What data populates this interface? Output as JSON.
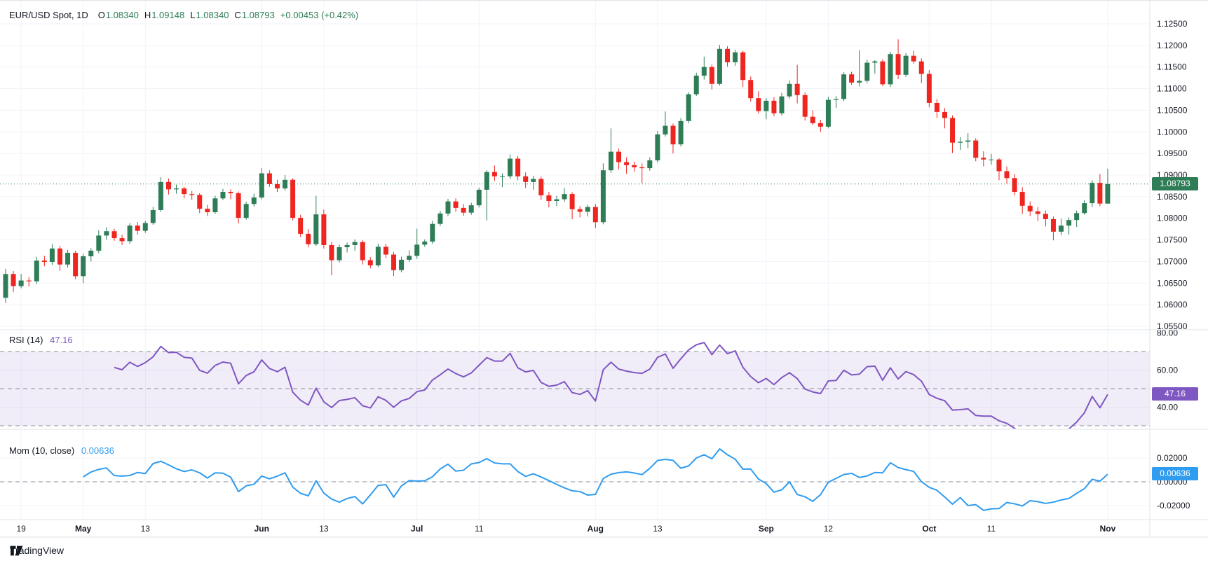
{
  "ui": {
    "symbol_title": "EUR/USD Spot, 1D",
    "ohlc": {
      "o_label": "O",
      "o_value": "1.08340",
      "h_label": "H",
      "h_value": "1.09148",
      "l_label": "L",
      "l_value": "1.08340",
      "c_label": "C",
      "c_value": "1.08793",
      "change": "+0.00453 (+0.42%)"
    },
    "rsi_legend": {
      "name": "RSI",
      "params": "(14)",
      "value": "47.16"
    },
    "mom_legend": {
      "name": "Mom",
      "params": "(10, close)",
      "value": "0.00636"
    },
    "price_badge": "1.08793",
    "rsi_badge": "47.16",
    "mom_badge": "0.00636",
    "logo_text": "TradingView"
  },
  "colors": {
    "up": "#2e7d57",
    "down": "#ef2520",
    "rsi_line": "#7e57c2",
    "rsi_band": "rgba(126,87,194,0.11)",
    "mom_line": "#2f9cf0",
    "guide_dash": "#8b8e98",
    "grid": "#f0f3fa",
    "divider": "#e0e3eb",
    "text": "#131722",
    "price_line": "#2e7d57"
  },
  "chart_data": {
    "type": "candlestick",
    "symbol": "EUR/USD Spot",
    "interval": "1D",
    "last_bar": {
      "open": 1.0834,
      "high": 1.09148,
      "low": 1.0834,
      "close": 1.08793,
      "change": 0.00453,
      "change_pct": 0.42
    },
    "price_axis_labels": [
      {
        "t": "1.12500",
        "v": 1.125
      },
      {
        "t": "1.12000",
        "v": 1.12
      },
      {
        "t": "1.11500",
        "v": 1.115
      },
      {
        "t": "1.11000",
        "v": 1.11
      },
      {
        "t": "1.10500",
        "v": 1.105
      },
      {
        "t": "1.10000",
        "v": 1.1
      },
      {
        "t": "1.09500",
        "v": 1.095
      },
      {
        "t": "1.09000",
        "v": 1.09
      },
      {
        "t": "1.08500",
        "v": 1.085
      },
      {
        "t": "1.08000",
        "v": 1.08
      },
      {
        "t": "1.07500",
        "v": 1.075
      },
      {
        "t": "1.07000",
        "v": 1.07
      },
      {
        "t": "1.06500",
        "v": 1.065
      },
      {
        "t": "1.06000",
        "v": 1.06
      },
      {
        "t": "1.05500",
        "v": 1.055
      }
    ],
    "time_ticks": [
      {
        "label": "19",
        "i": 2,
        "bold": false
      },
      {
        "label": "May",
        "i": 10,
        "bold": true
      },
      {
        "label": "13",
        "i": 18,
        "bold": false
      },
      {
        "label": "Jun",
        "i": 33,
        "bold": true
      },
      {
        "label": "13",
        "i": 41,
        "bold": false
      },
      {
        "label": "Jul",
        "i": 53,
        "bold": true
      },
      {
        "label": "11",
        "i": 61,
        "bold": false
      },
      {
        "label": "Aug",
        "i": 76,
        "bold": true
      },
      {
        "label": "13",
        "i": 84,
        "bold": false
      },
      {
        "label": "Sep",
        "i": 98,
        "bold": true
      },
      {
        "label": "12",
        "i": 106,
        "bold": false
      },
      {
        "label": "Oct",
        "i": 119,
        "bold": true
      },
      {
        "label": "11",
        "i": 127,
        "bold": false
      },
      {
        "label": "Nov",
        "i": 142,
        "bold": true
      }
    ],
    "indicators": [
      {
        "type": "rsi",
        "period": 14,
        "last": 47.16,
        "guides": [
          70,
          50,
          30
        ],
        "band": [
          30,
          70
        ],
        "axis_labels": [
          {
            "t": "80.00",
            "v": 80
          },
          {
            "t": "60.00",
            "v": 60
          },
          {
            "t": "40.00",
            "v": 40
          }
        ]
      },
      {
        "type": "momentum",
        "period": 10,
        "source": "close",
        "last": 0.00636,
        "guides": [
          0
        ],
        "axis_labels": [
          {
            "t": "0.02000",
            "v": 0.02
          },
          {
            "t": "0.00000",
            "v": 0
          },
          {
            "t": "-0.02000",
            "v": -0.02
          }
        ]
      }
    ],
    "candles": [
      [
        1.0616,
        1.0683,
        1.0604,
        1.0671
      ],
      [
        1.0671,
        1.0678,
        1.0629,
        1.0643
      ],
      [
        1.0643,
        1.0671,
        1.0638,
        1.0656
      ],
      [
        1.0656,
        1.0664,
        1.0642,
        1.0654
      ],
      [
        1.0654,
        1.0711,
        1.0648,
        1.0702
      ],
      [
        1.0702,
        1.0713,
        1.0689,
        1.0699
      ],
      [
        1.0699,
        1.074,
        1.0692,
        1.073
      ],
      [
        1.073,
        1.0736,
        1.0678,
        1.0693
      ],
      [
        1.0693,
        1.0727,
        1.0686,
        1.072
      ],
      [
        1.072,
        1.0725,
        1.0659,
        1.0666
      ],
      [
        1.0666,
        1.0718,
        1.065,
        1.0712
      ],
      [
        1.0712,
        1.0731,
        1.07,
        1.0725
      ],
      [
        1.0725,
        1.0772,
        1.0719,
        1.076
      ],
      [
        1.076,
        1.0779,
        1.075,
        1.077
      ],
      [
        1.077,
        1.0776,
        1.0748,
        1.0754
      ],
      [
        1.0754,
        1.0762,
        1.0738,
        1.0747
      ],
      [
        1.0747,
        1.0789,
        1.0741,
        1.0783
      ],
      [
        1.0783,
        1.0791,
        1.0762,
        1.0771
      ],
      [
        1.0771,
        1.0794,
        1.0766,
        1.0789
      ],
      [
        1.0789,
        1.0826,
        1.0785,
        1.0819
      ],
      [
        1.0819,
        1.0895,
        1.0815,
        1.0884
      ],
      [
        1.0884,
        1.0892,
        1.0855,
        1.0867
      ],
      [
        1.0867,
        1.0878,
        1.0857,
        1.0869
      ],
      [
        1.0869,
        1.0873,
        1.0846,
        1.0856
      ],
      [
        1.0856,
        1.0863,
        1.0842,
        1.0854
      ],
      [
        1.0854,
        1.0858,
        1.0812,
        1.0822
      ],
      [
        1.0822,
        1.0831,
        1.0805,
        1.0814
      ],
      [
        1.0814,
        1.0852,
        1.081,
        1.0846
      ],
      [
        1.0846,
        1.0868,
        1.0842,
        1.0861
      ],
      [
        1.0861,
        1.0867,
        1.0844,
        1.0858
      ],
      [
        1.0858,
        1.0862,
        1.0788,
        1.0801
      ],
      [
        1.0801,
        1.0838,
        1.0797,
        1.0833
      ],
      [
        1.0833,
        1.0857,
        1.0827,
        1.0848
      ],
      [
        1.0848,
        1.0916,
        1.0844,
        1.0904
      ],
      [
        1.0904,
        1.0911,
        1.0873,
        1.0879
      ],
      [
        1.0879,
        1.0889,
        1.0861,
        1.0869
      ],
      [
        1.0869,
        1.09,
        1.0864,
        1.0889
      ],
      [
        1.0889,
        1.0893,
        1.0795,
        1.0801
      ],
      [
        1.0801,
        1.0808,
        1.0757,
        1.0764
      ],
      [
        1.0764,
        1.0775,
        1.0733,
        1.074
      ],
      [
        1.074,
        1.0852,
        1.0736,
        1.0809
      ],
      [
        1.0809,
        1.082,
        1.073,
        1.0738
      ],
      [
        1.0738,
        1.0745,
        1.0668,
        1.0703
      ],
      [
        1.0703,
        1.0739,
        1.0698,
        1.0733
      ],
      [
        1.0733,
        1.0744,
        1.0721,
        1.0738
      ],
      [
        1.0738,
        1.0751,
        1.0725,
        1.0745
      ],
      [
        1.0745,
        1.0749,
        1.0693,
        1.0703
      ],
      [
        1.0703,
        1.071,
        1.0684,
        1.0691
      ],
      [
        1.0691,
        1.0741,
        1.0687,
        1.0734
      ],
      [
        1.0734,
        1.0741,
        1.0708,
        1.0716
      ],
      [
        1.0716,
        1.0722,
        1.0666,
        1.068
      ],
      [
        1.068,
        1.0711,
        1.0675,
        1.0704
      ],
      [
        1.0704,
        1.0726,
        1.0699,
        1.0713
      ],
      [
        1.0713,
        1.0776,
        1.0706,
        1.0739
      ],
      [
        1.0739,
        1.0751,
        1.0734,
        1.0746
      ],
      [
        1.0746,
        1.0794,
        1.0741,
        1.0787
      ],
      [
        1.0787,
        1.0817,
        1.0782,
        1.0811
      ],
      [
        1.0811,
        1.0845,
        1.0805,
        1.0839
      ],
      [
        1.0839,
        1.0846,
        1.0815,
        1.0824
      ],
      [
        1.0824,
        1.0833,
        1.0806,
        1.0813
      ],
      [
        1.0813,
        1.0836,
        1.0808,
        1.083
      ],
      [
        1.083,
        1.0871,
        1.0825,
        1.0866
      ],
      [
        1.0866,
        1.0911,
        1.0795,
        1.0907
      ],
      [
        1.0907,
        1.0922,
        1.0886,
        1.0897
      ],
      [
        1.0897,
        1.0904,
        1.0872,
        1.0897
      ],
      [
        1.0897,
        1.0948,
        1.0891,
        1.0938
      ],
      [
        1.0938,
        1.0944,
        1.0888,
        1.0897
      ],
      [
        1.0897,
        1.0906,
        1.087,
        1.0884
      ],
      [
        1.0884,
        1.0898,
        1.0866,
        1.0891
      ],
      [
        1.0891,
        1.0896,
        1.0843,
        1.0853
      ],
      [
        1.0853,
        1.0861,
        1.0825,
        1.084
      ],
      [
        1.084,
        1.0852,
        1.0828,
        1.0844
      ],
      [
        1.0844,
        1.087,
        1.0838,
        1.0856
      ],
      [
        1.0856,
        1.086,
        1.0798,
        1.0821
      ],
      [
        1.0821,
        1.0828,
        1.0802,
        1.0815
      ],
      [
        1.0815,
        1.0831,
        1.0804,
        1.0826
      ],
      [
        1.0826,
        1.0833,
        1.0777,
        1.0791
      ],
      [
        1.0791,
        1.0927,
        1.0786,
        1.0911
      ],
      [
        1.0911,
        1.1008,
        1.0905,
        1.0954
      ],
      [
        1.0954,
        1.0961,
        1.0913,
        1.093
      ],
      [
        1.093,
        1.0941,
        1.0903,
        1.0923
      ],
      [
        1.0923,
        1.0931,
        1.0908,
        1.0918
      ],
      [
        1.0918,
        1.0927,
        1.0881,
        1.0916
      ],
      [
        1.0916,
        1.0941,
        1.091,
        1.0934
      ],
      [
        1.0934,
        1.1002,
        1.0929,
        1.0994
      ],
      [
        1.0994,
        1.1047,
        1.0989,
        1.1014
      ],
      [
        1.1014,
        1.1019,
        1.095,
        1.0971
      ],
      [
        1.0971,
        1.1032,
        1.0966,
        1.1025
      ],
      [
        1.1025,
        1.1092,
        1.102,
        1.1087
      ],
      [
        1.1087,
        1.1137,
        1.1083,
        1.113
      ],
      [
        1.113,
        1.1174,
        1.1121,
        1.115
      ],
      [
        1.115,
        1.1156,
        1.1098,
        1.1111
      ],
      [
        1.1111,
        1.1201,
        1.1107,
        1.1192
      ],
      [
        1.1192,
        1.1198,
        1.1151,
        1.1161
      ],
      [
        1.1161,
        1.119,
        1.1153,
        1.1184
      ],
      [
        1.1184,
        1.1188,
        1.1104,
        1.112
      ],
      [
        1.112,
        1.1128,
        1.107,
        1.1078
      ],
      [
        1.1078,
        1.1094,
        1.1042,
        1.1048
      ],
      [
        1.1048,
        1.1078,
        1.1029,
        1.1072
      ],
      [
        1.1072,
        1.108,
        1.1036,
        1.1043
      ],
      [
        1.1043,
        1.109,
        1.1038,
        1.1082
      ],
      [
        1.1082,
        1.1119,
        1.1077,
        1.1111
      ],
      [
        1.1111,
        1.1155,
        1.1066,
        1.1085
      ],
      [
        1.1085,
        1.1091,
        1.1026,
        1.1035
      ],
      [
        1.1035,
        1.105,
        1.1015,
        1.102
      ],
      [
        1.102,
        1.1028,
        1.1,
        1.1012
      ],
      [
        1.1012,
        1.1081,
        1.1008,
        1.1074
      ],
      [
        1.1074,
        1.1083,
        1.1055,
        1.1076
      ],
      [
        1.1076,
        1.1138,
        1.1071,
        1.1133
      ],
      [
        1.1133,
        1.1139,
        1.1109,
        1.1114
      ],
      [
        1.1114,
        1.1189,
        1.1105,
        1.1118
      ],
      [
        1.1118,
        1.1167,
        1.1113,
        1.116
      ],
      [
        1.116,
        1.1166,
        1.1135,
        1.1163
      ],
      [
        1.1163,
        1.1168,
        1.1106,
        1.111
      ],
      [
        1.111,
        1.1185,
        1.1104,
        1.118
      ],
      [
        1.118,
        1.1214,
        1.1122,
        1.1132
      ],
      [
        1.1132,
        1.1182,
        1.1127,
        1.1176
      ],
      [
        1.1176,
        1.1188,
        1.1158,
        1.1163
      ],
      [
        1.1163,
        1.117,
        1.1113,
        1.1134
      ],
      [
        1.1134,
        1.1143,
        1.1057,
        1.1067
      ],
      [
        1.1067,
        1.1076,
        1.1032,
        1.1046
      ],
      [
        1.1046,
        1.1055,
        1.1008,
        1.1032
      ],
      [
        1.1032,
        1.1038,
        1.0951,
        1.0975
      ],
      [
        1.0975,
        1.0988,
        1.0958,
        1.0977
      ],
      [
        1.0977,
        1.0997,
        1.0962,
        1.098
      ],
      [
        1.098,
        1.0985,
        1.0932,
        1.094
      ],
      [
        1.094,
        1.0955,
        1.092,
        1.0936
      ],
      [
        1.0936,
        1.0949,
        1.0924,
        1.0936
      ],
      [
        1.0936,
        1.0939,
        1.0888,
        1.0909
      ],
      [
        1.0909,
        1.092,
        1.088,
        1.0893
      ],
      [
        1.0893,
        1.0902,
        1.0853,
        1.0861
      ],
      [
        1.0861,
        1.0872,
        1.081,
        1.0829
      ],
      [
        1.0829,
        1.0839,
        1.0805,
        1.0816
      ],
      [
        1.0816,
        1.0826,
        1.0793,
        1.081
      ],
      [
        1.081,
        1.0818,
        1.0781,
        1.0798
      ],
      [
        1.0798,
        1.0804,
        1.0749,
        1.0769
      ],
      [
        1.0769,
        1.0799,
        1.0761,
        1.0783
      ],
      [
        1.0783,
        1.0802,
        1.0762,
        1.0796
      ],
      [
        1.0796,
        1.0818,
        1.078,
        1.0812
      ],
      [
        1.0812,
        1.0842,
        1.0808,
        1.0835
      ],
      [
        1.0835,
        1.0888,
        1.0826,
        1.0882
      ],
      [
        1.0882,
        1.0902,
        1.0828,
        1.0834
      ],
      [
        1.0834,
        1.09148,
        1.0834,
        1.08793
      ]
    ]
  }
}
